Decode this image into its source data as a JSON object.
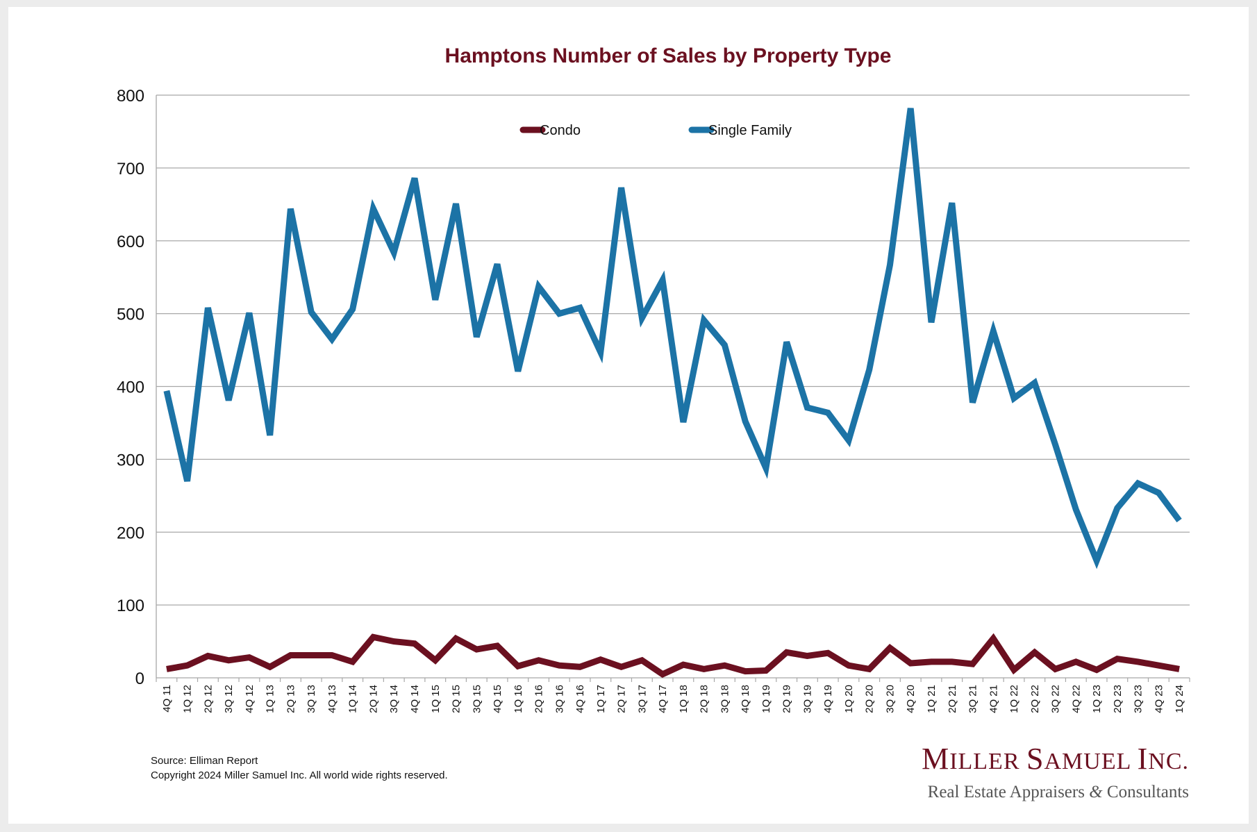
{
  "chart_data": {
    "type": "line",
    "title": "Hamptons Number of Sales by Property Type",
    "xlabel": "",
    "ylabel": "",
    "ylim": [
      0,
      800
    ],
    "yticks": [
      0,
      100,
      200,
      300,
      400,
      500,
      600,
      700,
      800
    ],
    "grid": true,
    "legend_position": "top-center",
    "categories": [
      "4Q 11",
      "1Q 12",
      "2Q 12",
      "3Q 12",
      "4Q 12",
      "1Q 13",
      "2Q 13",
      "3Q 13",
      "4Q 13",
      "1Q 14",
      "2Q 14",
      "3Q 14",
      "4Q 14",
      "1Q 15",
      "2Q 15",
      "3Q 15",
      "4Q 15",
      "1Q 16",
      "2Q 16",
      "3Q 16",
      "4Q 16",
      "1Q 17",
      "2Q 17",
      "3Q 17",
      "4Q 17",
      "1Q 18",
      "2Q 18",
      "3Q 18",
      "4Q 18",
      "1Q 19",
      "2Q 19",
      "3Q 19",
      "4Q 19",
      "1Q 20",
      "2Q 20",
      "3Q 20",
      "4Q 20",
      "1Q 21",
      "2Q 21",
      "3Q 21",
      "4Q 21",
      "1Q 22",
      "2Q 22",
      "3Q 22",
      "4Q 22",
      "1Q 23",
      "2Q 23",
      "3Q 23",
      "4Q 23",
      "1Q 24"
    ],
    "series": [
      {
        "name": "Condo",
        "color": "#6b1020",
        "values": [
          12,
          17,
          30,
          24,
          28,
          15,
          31,
          31,
          31,
          22,
          56,
          50,
          47,
          24,
          54,
          39,
          44,
          16,
          24,
          17,
          15,
          25,
          15,
          24,
          5,
          18,
          12,
          17,
          9,
          10,
          35,
          30,
          34,
          17,
          12,
          41,
          20,
          22,
          22,
          19,
          54,
          11,
          35,
          12,
          22,
          11,
          26,
          22,
          17,
          12
        ]
      },
      {
        "name": "Single Family",
        "color": "#1c73a6",
        "values": [
          394,
          270,
          508,
          381,
          501,
          333,
          644,
          502,
          465,
          506,
          644,
          584,
          686,
          519,
          651,
          468,
          568,
          421,
          537,
          500,
          508,
          447,
          673,
          494,
          546,
          351,
          491,
          457,
          352,
          288,
          461,
          371,
          364,
          326,
          423,
          567,
          782,
          488,
          652,
          378,
          476,
          384,
          405,
          320,
          231,
          161,
          233,
          267,
          254,
          216
        ]
      }
    ]
  },
  "footer": {
    "source": "Source: Elliman Report",
    "copyright": "Copyright 2024 Miller Samuel Inc.  All world wide rights reserved."
  },
  "brand": {
    "name_initial_1": "M",
    "name_rest_1": "ILLER ",
    "name_initial_2": "S",
    "name_rest_2": "AMUEL ",
    "name_initial_3": "I",
    "name_rest_3": "NC.",
    "tagline_part1": "Real Estate Appraisers ",
    "tagline_amp": "&",
    "tagline_part2": " Consultants"
  }
}
